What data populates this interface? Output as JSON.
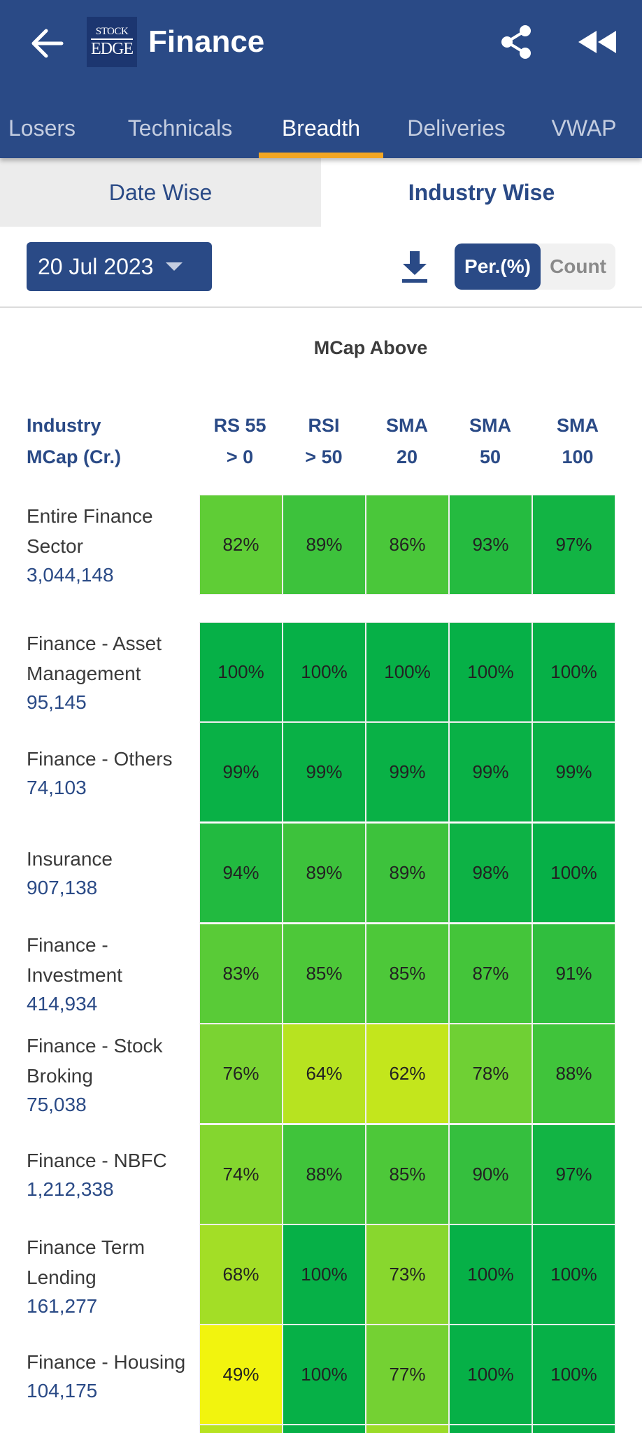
{
  "header": {
    "title": "Finance",
    "logo_line1": "STOCK",
    "logo_line2": "EDGE"
  },
  "tabs": [
    {
      "label": "Losers",
      "active": false
    },
    {
      "label": "Technicals",
      "active": false
    },
    {
      "label": "Breadth",
      "active": true
    },
    {
      "label": "Deliveries",
      "active": false
    },
    {
      "label": "VWAP",
      "active": false
    }
  ],
  "segments": {
    "left": "Date Wise",
    "right": "Industry Wise",
    "selected": "Industry Wise"
  },
  "filters": {
    "date": "20 Jul 2023",
    "toggle_on": "Per.(%)",
    "toggle_off": "Count"
  },
  "table": {
    "section_title": "MCap Above",
    "industry_header_line1": "Industry",
    "industry_header_line2": "MCap (Cr.)",
    "columns": [
      {
        "line1": "RS 55",
        "line2": "> 0"
      },
      {
        "line1": "RSI",
        "line2": "> 50"
      },
      {
        "line1": "SMA",
        "line2": "20"
      },
      {
        "line1": "SMA",
        "line2": "50"
      },
      {
        "line1": "SMA",
        "line2": "100"
      }
    ],
    "rows": [
      {
        "name": "Entire Finance Sector",
        "mcap": "3,044,148",
        "values": [
          "82%",
          "89%",
          "86%",
          "93%",
          "97%"
        ],
        "colors": [
          "#5fcd36",
          "#3dc23c",
          "#4ac73a",
          "#25bb40",
          "#12b444"
        ]
      },
      {
        "name": "Finance - Asset Management",
        "mcap": "95,145",
        "values": [
          "100%",
          "100%",
          "100%",
          "100%",
          "100%"
        ],
        "colors": [
          "#06b047",
          "#06b047",
          "#06b047",
          "#06b047",
          "#06b047"
        ]
      },
      {
        "name": "Finance - Others",
        "mcap": "74,103",
        "values": [
          "99%",
          "99%",
          "99%",
          "99%",
          "99%"
        ],
        "colors": [
          "#09b146",
          "#09b146",
          "#09b146",
          "#09b146",
          "#09b146"
        ]
      },
      {
        "name": "Insurance",
        "mcap": "907,138",
        "values": [
          "94%",
          "89%",
          "89%",
          "98%",
          "100%"
        ],
        "colors": [
          "#22ba40",
          "#3dc23c",
          "#3dc23c",
          "#0db245",
          "#06b047"
        ]
      },
      {
        "name": "Finance - Investment",
        "mcap": "414,934",
        "values": [
          "83%",
          "85%",
          "85%",
          "87%",
          "91%"
        ],
        "colors": [
          "#59cb37",
          "#4dc839",
          "#4dc839",
          "#44c53a",
          "#30be3e"
        ]
      },
      {
        "name": "Finance - Stock Broking",
        "mcap": "75,038",
        "values": [
          "76%",
          "64%",
          "62%",
          "78%",
          "88%"
        ],
        "colors": [
          "#7ad332",
          "#b7e320",
          "#c3e61c",
          "#6fd034",
          "#40c43b"
        ]
      },
      {
        "name": "Finance - NBFC",
        "mcap": "1,212,338",
        "values": [
          "74%",
          "88%",
          "85%",
          "90%",
          "97%"
        ],
        "colors": [
          "#84d62f",
          "#40c43b",
          "#4dc839",
          "#35bf3e",
          "#12b444"
        ]
      },
      {
        "name": "Finance Term Lending",
        "mcap": "161,277",
        "values": [
          "68%",
          "100%",
          "73%",
          "100%",
          "100%"
        ],
        "colors": [
          "#a3de26",
          "#06b047",
          "#88d72e",
          "#06b047",
          "#06b047"
        ]
      },
      {
        "name": "Finance - Housing",
        "mcap": "104,175",
        "values": [
          "49%",
          "100%",
          "77%",
          "100%",
          "100%"
        ],
        "colors": [
          "#f2f40e",
          "#06b047",
          "#74d133",
          "#06b047",
          "#06b047"
        ]
      }
    ]
  }
}
